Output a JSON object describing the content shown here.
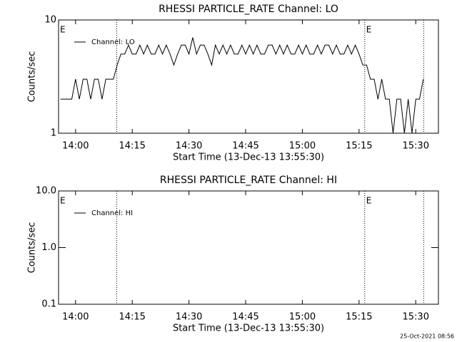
{
  "chart_data": [
    {
      "type": "line",
      "title": "RHESSI PARTICLE_RATE Channel: LO",
      "xlabel": "Start Time (13-Dec-13 13:55:30)",
      "ylabel": "Counts/sec",
      "ylog": true,
      "xlim": [
        835.5,
        936
      ],
      "ylim": [
        1,
        10
      ],
      "yticks": [
        1,
        10
      ],
      "xticks": [
        {
          "value": 840,
          "label": "14:00"
        },
        {
          "value": 855,
          "label": "14:15"
        },
        {
          "value": 870,
          "label": "14:30"
        },
        {
          "value": 885,
          "label": "14:45"
        },
        {
          "value": 900,
          "label": "15:00"
        },
        {
          "value": 915,
          "label": "15:15"
        },
        {
          "value": 930,
          "label": "15:30"
        }
      ],
      "legend": "upper left",
      "vlines": [
        850.9,
        916.5,
        932.1
      ],
      "markers": [
        {
          "x": 835.5,
          "label": "E"
        },
        {
          "x": 916.5,
          "label": "E"
        }
      ],
      "x": [
        836,
        837,
        838,
        839,
        840,
        841,
        842,
        843,
        844,
        845,
        846,
        847,
        848,
        849,
        850,
        851,
        852,
        853,
        854,
        855,
        856,
        857,
        858,
        859,
        860,
        861,
        862,
        863,
        864,
        865,
        866,
        867,
        868,
        869,
        870,
        871,
        872,
        873,
        874,
        875,
        876,
        877,
        878,
        879,
        880,
        881,
        882,
        883,
        884,
        885,
        886,
        887,
        888,
        889,
        890,
        891,
        892,
        893,
        894,
        895,
        896,
        897,
        898,
        899,
        900,
        901,
        902,
        903,
        904,
        905,
        906,
        907,
        908,
        909,
        910,
        911,
        912,
        913,
        914,
        915,
        916,
        917,
        918,
        919,
        920,
        921,
        922,
        923,
        924,
        925,
        926,
        927,
        928,
        929,
        930,
        931,
        932
      ],
      "series": [
        {
          "name": "Channel: LO",
          "color": "#000000",
          "values": [
            2,
            2,
            2,
            2,
            3,
            2,
            3,
            3,
            2,
            3,
            3,
            2,
            3,
            3,
            3,
            4,
            5,
            5,
            6,
            5,
            5,
            6,
            5,
            6,
            5,
            5,
            6,
            5,
            6,
            5,
            4,
            5,
            6,
            6,
            5,
            7,
            5,
            6,
            6,
            5,
            4,
            6,
            5,
            6,
            5,
            6,
            5,
            5,
            6,
            5,
            6,
            5,
            6,
            5,
            5,
            6,
            6,
            5,
            6,
            5,
            6,
            5,
            5,
            6,
            5,
            6,
            5,
            5,
            6,
            5,
            6,
            6,
            5,
            6,
            5,
            5,
            6,
            5,
            6,
            5,
            4,
            4,
            3,
            3,
            2,
            3,
            2,
            2,
            1,
            2,
            2,
            1,
            2,
            1,
            2,
            2,
            3
          ]
        }
      ]
    },
    {
      "type": "line",
      "title": "RHESSI PARTICLE_RATE Channel: HI",
      "xlabel": "Start Time (13-Dec-13 13:55:30)",
      "ylabel": "Counts/sec",
      "ylog": true,
      "xlim": [
        835.5,
        936
      ],
      "ylim": [
        0.1,
        10
      ],
      "yticks": [
        0.1,
        {
          "value": 1,
          "label": "1.0"
        },
        {
          "value": 10,
          "label": "10.0"
        }
      ],
      "xticks": [
        {
          "value": 840,
          "label": "14:00"
        },
        {
          "value": 855,
          "label": "14:15"
        },
        {
          "value": 870,
          "label": "14:30"
        },
        {
          "value": 885,
          "label": "14:45"
        },
        {
          "value": 900,
          "label": "15:00"
        },
        {
          "value": 915,
          "label": "15:15"
        },
        {
          "value": 930,
          "label": "15:30"
        }
      ],
      "legend": "upper left",
      "vlines": [
        850.9,
        916.5,
        932.1
      ],
      "markers": [
        {
          "x": 835.5,
          "label": "E"
        },
        {
          "x": 916.5,
          "label": "E"
        }
      ],
      "x": [],
      "series": [
        {
          "name": "Channel: HI",
          "color": "#000000",
          "values": []
        }
      ]
    }
  ],
  "footer": "25-Oct-2021 08:56"
}
